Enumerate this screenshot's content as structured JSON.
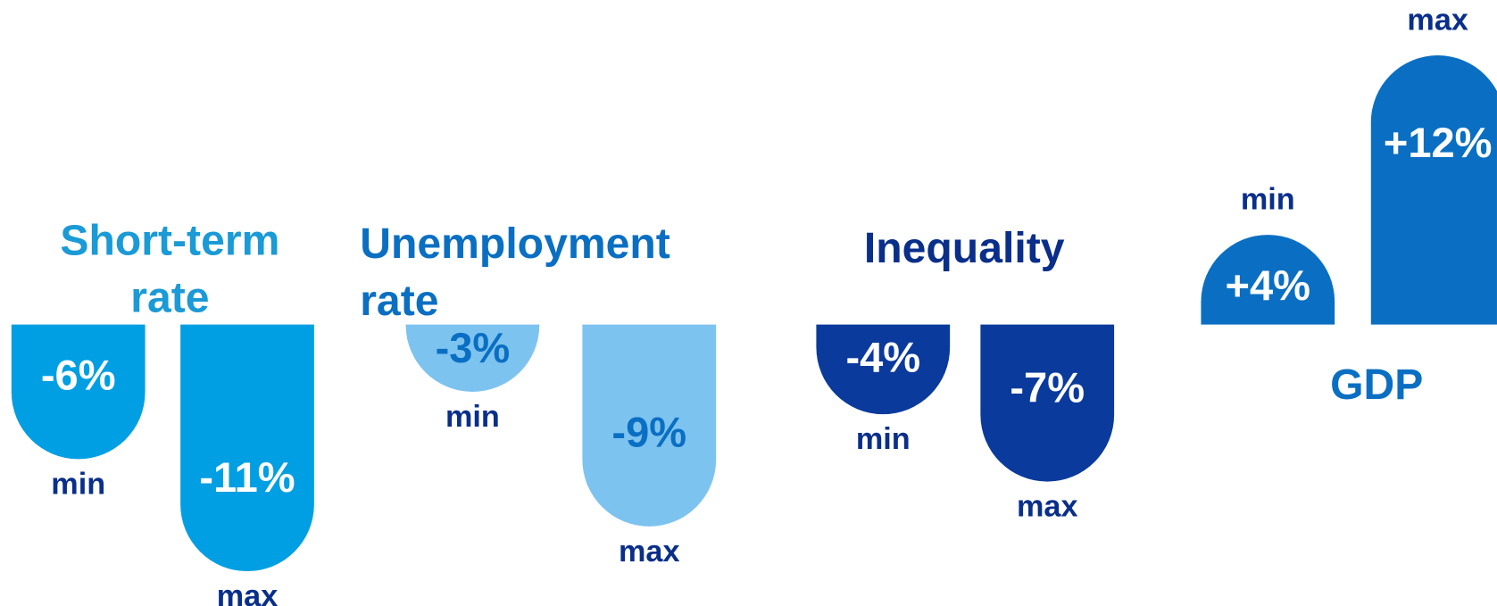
{
  "chart_data": {
    "type": "bar",
    "groups": [
      {
        "title": "Short-term rate",
        "title_color": "#1a9ad6",
        "color": "#009fe3",
        "label_color": "#ffffff",
        "categories": [
          "min",
          "max"
        ],
        "values": [
          -6,
          -11
        ],
        "value_labels": [
          "-6%",
          "-11%"
        ]
      },
      {
        "title": "Unemployment rate",
        "title_color": "#0a6fc2",
        "color": "#7dc3f0",
        "label_color": "#0a6fc2",
        "categories": [
          "min",
          "max"
        ],
        "values": [
          -3,
          -9
        ],
        "value_labels": [
          "-3%",
          "-9%"
        ]
      },
      {
        "title": "Inequality",
        "title_color": "#0a2f8a",
        "color": "#0a3a9c",
        "label_color": "#ffffff",
        "categories": [
          "min",
          "max"
        ],
        "values": [
          -4,
          -7
        ],
        "value_labels": [
          "-4%",
          "-7%"
        ]
      },
      {
        "title": "GDP",
        "title_color": "#0a6fc2",
        "color": "#0a6fc2",
        "label_color": "#ffffff",
        "categories": [
          "min",
          "max"
        ],
        "values": [
          4,
          12
        ],
        "value_labels": [
          "+4%",
          "+12%"
        ]
      }
    ],
    "category_color": "#0a2f8a"
  }
}
